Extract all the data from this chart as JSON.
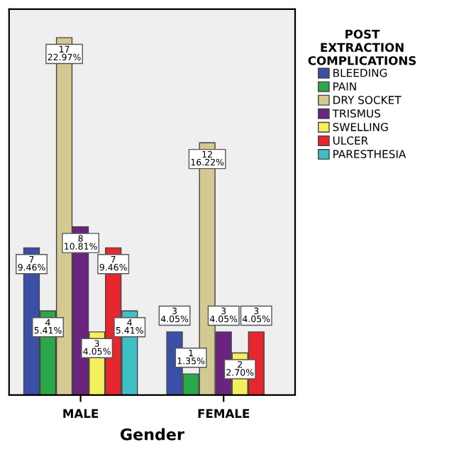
{
  "chart_data": {
    "type": "bar",
    "xlabel": "Gender",
    "legend_title": "POST EXTRACTION COMPLICATIONS",
    "categories": [
      "MALE",
      "FEMALE"
    ],
    "series": [
      {
        "name": "BLEEDING",
        "color": "#3a4fa8",
        "values": [
          7,
          3
        ],
        "value_labels": [
          "7\n9.46%",
          "3\n4.05%"
        ]
      },
      {
        "name": "PAIN",
        "color": "#2aa84a",
        "values": [
          4,
          1
        ],
        "value_labels": [
          "4\n5.41%",
          "1\n1.35%"
        ]
      },
      {
        "name": "DRY SOCKET",
        "color": "#d3ca92",
        "values": [
          17,
          12
        ],
        "value_labels": [
          "17\n22.97%",
          "12\n16.22%"
        ]
      },
      {
        "name": "TRISMUS",
        "color": "#6a2480",
        "values": [
          8,
          3
        ],
        "value_labels": [
          "8\n10.81%",
          "3\n4.05%"
        ]
      },
      {
        "name": "SWELLING",
        "color": "#f4ef5c",
        "values": [
          3,
          2
        ],
        "value_labels": [
          "3\n4.05%",
          "2\n2.70%"
        ]
      },
      {
        "name": "ULCER",
        "color": "#e8262e",
        "values": [
          7,
          3
        ],
        "value_labels": [
          "7\n9.46%",
          "3\n4.05%"
        ]
      },
      {
        "name": "PARESTHESIA",
        "color": "#3cc0c4",
        "values": [
          4,
          null
        ],
        "value_labels": [
          "4\n5.41%",
          null
        ]
      }
    ],
    "tick_labels": "x",
    "grid": false,
    "legend": "right"
  }
}
